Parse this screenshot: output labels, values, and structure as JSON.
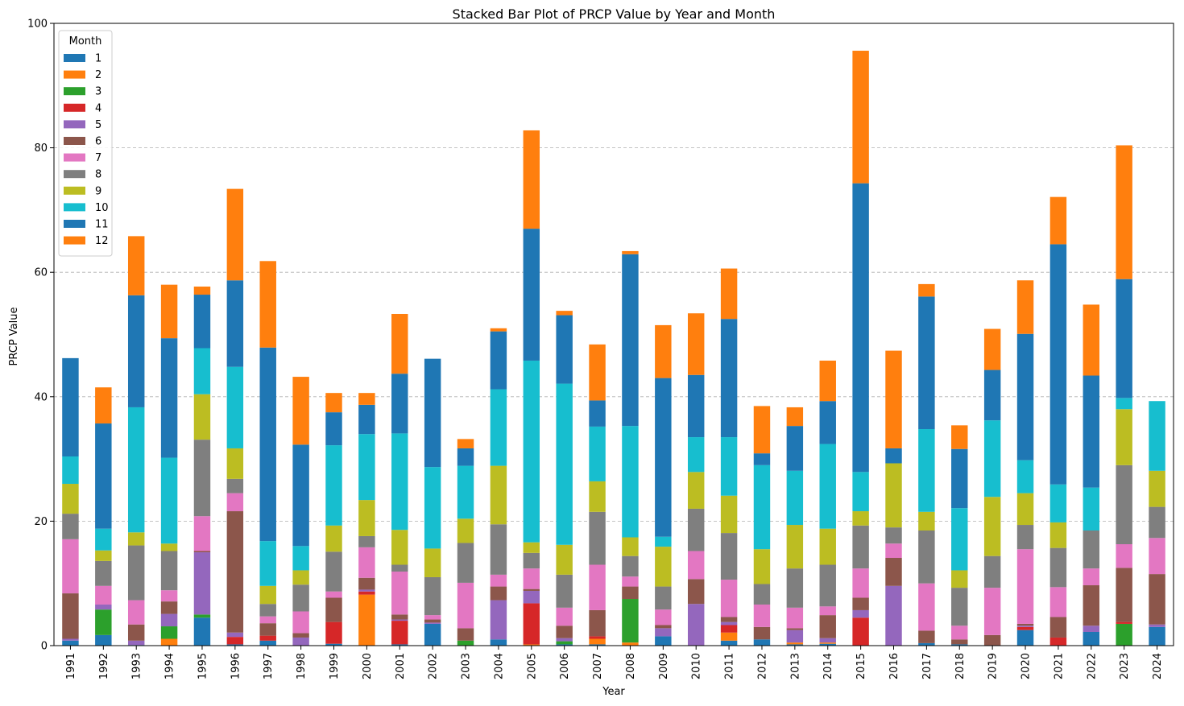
{
  "chart_data": {
    "type": "bar",
    "stacked": true,
    "title": "Stacked Bar Plot of PRCP Value by Year and Month",
    "xlabel": "Year",
    "ylabel": "PRCP Value",
    "ylim": [
      0,
      100
    ],
    "yticks": [
      0,
      20,
      40,
      60,
      80,
      100
    ],
    "grid": "y-dashed",
    "legend": {
      "title": "Month",
      "placement": "top-left"
    },
    "categories": [
      "1991",
      "1992",
      "1993",
      "1994",
      "1995",
      "1996",
      "1997",
      "1998",
      "1999",
      "2000",
      "2001",
      "2002",
      "2003",
      "2004",
      "2005",
      "2006",
      "2007",
      "2008",
      "2009",
      "2010",
      "2011",
      "2012",
      "2013",
      "2014",
      "2015",
      "2016",
      "2017",
      "2018",
      "2019",
      "2020",
      "2021",
      "2022",
      "2023",
      "2024"
    ],
    "series": [
      {
        "name": "1",
        "color": "#1f77b4",
        "values": [
          0.8,
          1.7,
          0.1,
          0.0,
          4.5,
          0.2,
          0.8,
          0.0,
          0.3,
          0.0,
          0.2,
          3.5,
          0.0,
          1.0,
          0.0,
          0.2,
          0.2,
          0.0,
          1.5,
          0.0,
          0.8,
          1.0,
          0.2,
          0.3,
          0.0,
          0.0,
          0.4,
          0.2,
          0.0,
          2.5,
          0.0,
          2.2,
          0.0,
          3.0
        ]
      },
      {
        "name": "2",
        "color": "#ff7f0e",
        "values": [
          0.0,
          0.0,
          0.0,
          1.1,
          0.0,
          0.0,
          0.0,
          0.0,
          0.0,
          8.2,
          0.0,
          0.0,
          0.0,
          0.0,
          0.2,
          0.0,
          0.9,
          0.5,
          0.0,
          0.0,
          1.3,
          0.0,
          0.3,
          0.2,
          0.0,
          0.0,
          0.0,
          0.0,
          0.0,
          0.0,
          0.0,
          0.0,
          0.0,
          0.0
        ]
      },
      {
        "name": "3",
        "color": "#2ca02c",
        "values": [
          0.0,
          4.1,
          0.0,
          2.0,
          0.5,
          0.0,
          0.0,
          0.0,
          0.0,
          0.0,
          0.0,
          0.0,
          0.8,
          0.0,
          0.0,
          0.5,
          0.0,
          7.0,
          0.0,
          0.0,
          0.0,
          0.0,
          0.0,
          0.0,
          0.0,
          0.0,
          0.0,
          0.0,
          0.0,
          0.0,
          0.0,
          0.0,
          3.5,
          0.0
        ]
      },
      {
        "name": "4",
        "color": "#d62728",
        "values": [
          0.0,
          0.0,
          0.0,
          0.0,
          0.0,
          1.2,
          0.8,
          0.0,
          3.5,
          0.5,
          3.8,
          0.0,
          0.0,
          0.0,
          6.6,
          0.0,
          0.4,
          0.0,
          0.0,
          0.0,
          1.2,
          0.0,
          0.0,
          0.0,
          4.5,
          0.0,
          0.0,
          0.0,
          0.0,
          0.5,
          1.3,
          0.0,
          0.3,
          0.0
        ]
      },
      {
        "name": "5",
        "color": "#9467bd",
        "values": [
          0.3,
          0.8,
          0.7,
          2.0,
          10.0,
          0.7,
          0.0,
          1.3,
          0.0,
          0.3,
          0.2,
          0.2,
          0.0,
          6.3,
          2.0,
          0.5,
          0.0,
          0.0,
          1.3,
          6.7,
          0.5,
          0.0,
          2.0,
          0.7,
          1.2,
          9.6,
          0.0,
          0.0,
          0.0,
          0.2,
          0.0,
          1.0,
          0.0,
          0.4
        ]
      },
      {
        "name": "6",
        "color": "#8c564b",
        "values": [
          7.3,
          0.0,
          2.6,
          2.0,
          0.2,
          19.5,
          2.0,
          0.7,
          3.9,
          1.9,
          0.8,
          0.5,
          2.0,
          2.2,
          0.3,
          2.0,
          4.2,
          2.0,
          0.5,
          4.0,
          0.8,
          2.0,
          0.3,
          3.7,
          2.0,
          4.5,
          2.0,
          0.8,
          1.7,
          0.3,
          3.3,
          6.5,
          8.7,
          8.1
        ]
      },
      {
        "name": "7",
        "color": "#e377c2",
        "values": [
          8.7,
          3.0,
          3.9,
          1.8,
          5.6,
          2.9,
          1.1,
          3.5,
          1.0,
          4.9,
          6.9,
          0.7,
          7.3,
          1.9,
          3.3,
          2.9,
          7.3,
          1.6,
          2.5,
          4.5,
          6.0,
          3.6,
          3.3,
          1.4,
          4.7,
          2.3,
          7.6,
          2.2,
          7.6,
          12.0,
          4.8,
          2.7,
          3.8,
          5.8
        ]
      },
      {
        "name": "8",
        "color": "#7f7f7f",
        "values": [
          4.1,
          4.0,
          8.8,
          6.3,
          12.3,
          2.3,
          2.0,
          4.3,
          6.4,
          1.8,
          1.1,
          6.1,
          6.4,
          8.1,
          2.5,
          5.3,
          8.5,
          3.3,
          3.7,
          6.8,
          7.5,
          3.3,
          6.3,
          6.7,
          6.9,
          2.6,
          8.5,
          6.1,
          5.1,
          3.9,
          6.3,
          6.1,
          12.7,
          5.0
        ]
      },
      {
        "name": "9",
        "color": "#bcbd22",
        "values": [
          4.8,
          1.7,
          2.1,
          1.2,
          7.3,
          4.9,
          2.9,
          2.3,
          4.2,
          5.8,
          5.6,
          4.6,
          3.9,
          9.4,
          1.7,
          4.8,
          4.9,
          3.0,
          6.4,
          5.9,
          6.0,
          5.6,
          7.0,
          5.8,
          2.3,
          10.3,
          3.0,
          2.8,
          9.5,
          5.1,
          4.1,
          0.0,
          9.0,
          5.8
        ]
      },
      {
        "name": "10",
        "color": "#17becf",
        "values": [
          4.4,
          3.5,
          20.1,
          13.8,
          7.4,
          13.1,
          7.2,
          3.9,
          12.9,
          10.6,
          15.5,
          13.1,
          8.5,
          12.3,
          29.2,
          25.9,
          8.8,
          17.9,
          1.6,
          5.6,
          9.4,
          13.5,
          8.7,
          13.6,
          6.3,
          0.0,
          13.3,
          10.0,
          12.3,
          5.3,
          6.1,
          6.9,
          1.8,
          11.2
        ]
      },
      {
        "name": "11",
        "color": "#1f77b4",
        "values": [
          15.8,
          16.9,
          18.0,
          19.2,
          8.6,
          13.9,
          31.1,
          16.3,
          5.3,
          4.7,
          9.6,
          17.4,
          2.8,
          9.3,
          21.2,
          11.0,
          4.2,
          27.6,
          25.5,
          10.0,
          19.0,
          1.9,
          7.2,
          6.9,
          46.4,
          2.4,
          21.3,
          9.5,
          8.1,
          20.3,
          38.6,
          18.0,
          19.1,
          0.0
        ]
      },
      {
        "name": "12",
        "color": "#ff7f0e",
        "values": [
          0.0,
          5.8,
          9.5,
          8.6,
          1.3,
          14.7,
          13.9,
          10.9,
          3.1,
          1.9,
          9.6,
          0.0,
          1.5,
          0.5,
          15.8,
          0.7,
          9.0,
          0.5,
          8.5,
          9.9,
          8.1,
          7.6,
          3.0,
          6.5,
          21.3,
          15.7,
          2.0,
          3.8,
          6.6,
          8.6,
          7.6,
          11.4,
          21.5,
          0.0
        ]
      }
    ]
  }
}
